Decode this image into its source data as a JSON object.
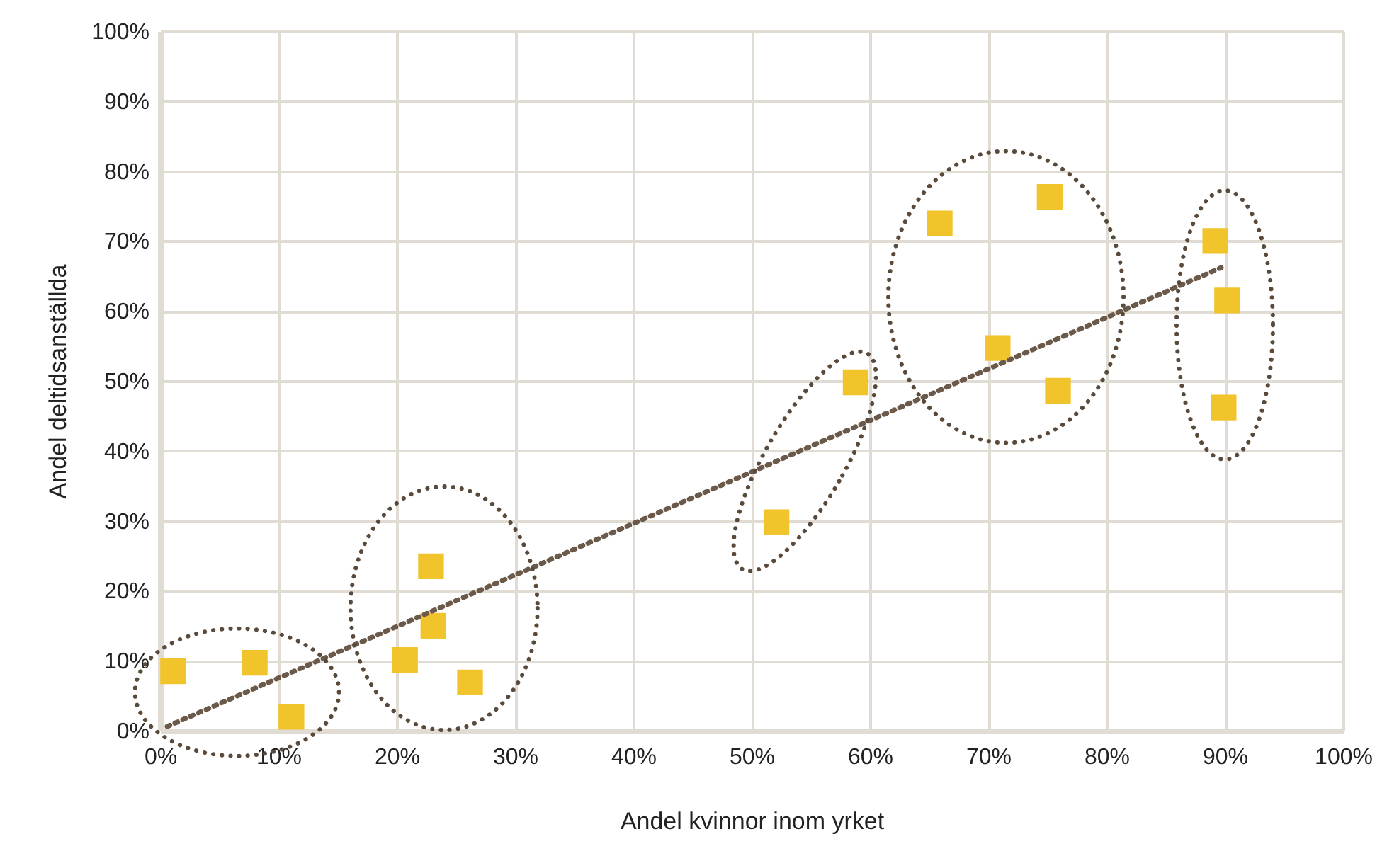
{
  "chart_data": {
    "type": "scatter",
    "xlabel": "Andel kvinnor inom yrket",
    "ylabel": "Andel deltidsanställda",
    "xlim": [
      0,
      100
    ],
    "ylim": [
      0,
      100
    ],
    "xticks": [
      {
        "value": 0,
        "label": "0%"
      },
      {
        "value": 10,
        "label": "10%"
      },
      {
        "value": 20,
        "label": "20%"
      },
      {
        "value": 30,
        "label": "30%"
      },
      {
        "value": 40,
        "label": "40%"
      },
      {
        "value": 50,
        "label": "50%"
      },
      {
        "value": 60,
        "label": "60%"
      },
      {
        "value": 70,
        "label": "70%"
      },
      {
        "value": 80,
        "label": "80%"
      },
      {
        "value": 90,
        "label": "90%"
      },
      {
        "value": 100,
        "label": "100%"
      }
    ],
    "yticks": [
      {
        "value": 0,
        "label": "0%"
      },
      {
        "value": 10,
        "label": "10%"
      },
      {
        "value": 20,
        "label": "20%"
      },
      {
        "value": 30,
        "label": "30%"
      },
      {
        "value": 40,
        "label": "40%"
      },
      {
        "value": 50,
        "label": "50%"
      },
      {
        "value": 60,
        "label": "60%"
      },
      {
        "value": 70,
        "label": "70%"
      },
      {
        "value": 80,
        "label": "80%"
      },
      {
        "value": 90,
        "label": "90%"
      },
      {
        "value": 100,
        "label": "100%"
      }
    ],
    "grid": true,
    "series": [
      {
        "marker": "square",
        "color": "#f2c42c",
        "x": [
          1.1,
          8,
          11.1,
          20.7,
          22.9,
          23.1,
          26.2,
          52.1,
          58.8,
          65.9,
          70.8,
          75.2,
          75.9,
          89.2,
          90.2,
          89.9
        ],
        "values": [
          8.5,
          9.7,
          2,
          10.1,
          23.5,
          15,
          6.9,
          29.8,
          49.8,
          72.5,
          54.7,
          76.3,
          48.6,
          70,
          61.5,
          46.2
        ]
      },
      {
        "type": "line",
        "line_style": "dotted",
        "color": "#6b5a4a",
        "x": [
          0.6,
          89.7
        ],
        "values": [
          0.6,
          66.2
        ]
      }
    ]
  }
}
